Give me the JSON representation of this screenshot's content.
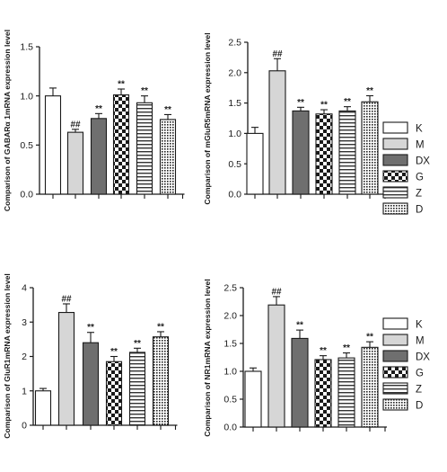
{
  "chart_data": [
    {
      "type": "bar",
      "ylabel": "Comparison of GABARα 1mRNA expression level",
      "ylim": [
        0,
        1.5
      ],
      "yticks": [
        "0.0",
        "0.5",
        "1.0",
        "1.5"
      ],
      "categories": [
        "K",
        "M",
        "DX",
        "G",
        "Z",
        "D"
      ],
      "values": [
        1.0,
        0.63,
        0.77,
        1.01,
        0.93,
        0.76
      ],
      "errors": [
        0.08,
        0.03,
        0.05,
        0.06,
        0.07,
        0.05
      ],
      "annotations": [
        "",
        "##",
        "**",
        "**",
        "**",
        "**"
      ],
      "legend": false
    },
    {
      "type": "bar",
      "ylabel": "Comparison of mGluR5mRNA expression level",
      "ylim": [
        0,
        2.5
      ],
      "yticks": [
        "0.0",
        "0.5",
        "1.0",
        "1.5",
        "2.0",
        "2.5"
      ],
      "categories": [
        "K",
        "M",
        "DX",
        "G",
        "Z",
        "D"
      ],
      "values": [
        1.0,
        2.03,
        1.37,
        1.32,
        1.37,
        1.52
      ],
      "errors": [
        0.1,
        0.2,
        0.06,
        0.07,
        0.07,
        0.1
      ],
      "annotations": [
        "",
        "##",
        "**",
        "**",
        "**",
        "**"
      ],
      "legend": true
    },
    {
      "type": "bar",
      "ylabel": "Comparison of GluR1mRNA expression level",
      "ylim": [
        0,
        4
      ],
      "yticks": [
        "0",
        "1",
        "2",
        "3",
        "4"
      ],
      "categories": [
        "K",
        "M",
        "DX",
        "G",
        "Z",
        "D"
      ],
      "values": [
        1.0,
        3.28,
        2.4,
        1.85,
        2.12,
        2.57
      ],
      "errors": [
        0.07,
        0.25,
        0.3,
        0.15,
        0.12,
        0.15
      ],
      "annotations": [
        "",
        "##",
        "**",
        "**",
        "**",
        "**"
      ],
      "legend": false
    },
    {
      "type": "bar",
      "ylabel": "Comparison of NR1mRNA expression level",
      "ylim": [
        0,
        2.5
      ],
      "yticks": [
        "0.0",
        "0.5",
        "1.0",
        "1.5",
        "2.0",
        "2.5"
      ],
      "categories": [
        "K",
        "M",
        "DX",
        "G",
        "Z",
        "D"
      ],
      "values": [
        1.0,
        2.19,
        1.59,
        1.21,
        1.24,
        1.43
      ],
      "errors": [
        0.06,
        0.15,
        0.15,
        0.07,
        0.09,
        0.1
      ],
      "annotations": [
        "",
        "##",
        "**",
        "**",
        "**",
        "**"
      ],
      "legend": true
    }
  ],
  "legend_items": [
    {
      "label": "K",
      "fill": "white"
    },
    {
      "label": "M",
      "fill": "light-gray"
    },
    {
      "label": "DX",
      "fill": "dark-gray"
    },
    {
      "label": "G",
      "fill": "checkerboard"
    },
    {
      "label": "Z",
      "fill": "horizontal-stripes"
    },
    {
      "label": "D",
      "fill": "dense-dots"
    }
  ],
  "colors": {
    "stroke": "#1a1a1a",
    "white": "#ffffff",
    "light_gray": "#d6d6d6",
    "dark_gray": "#6f6f6f"
  }
}
